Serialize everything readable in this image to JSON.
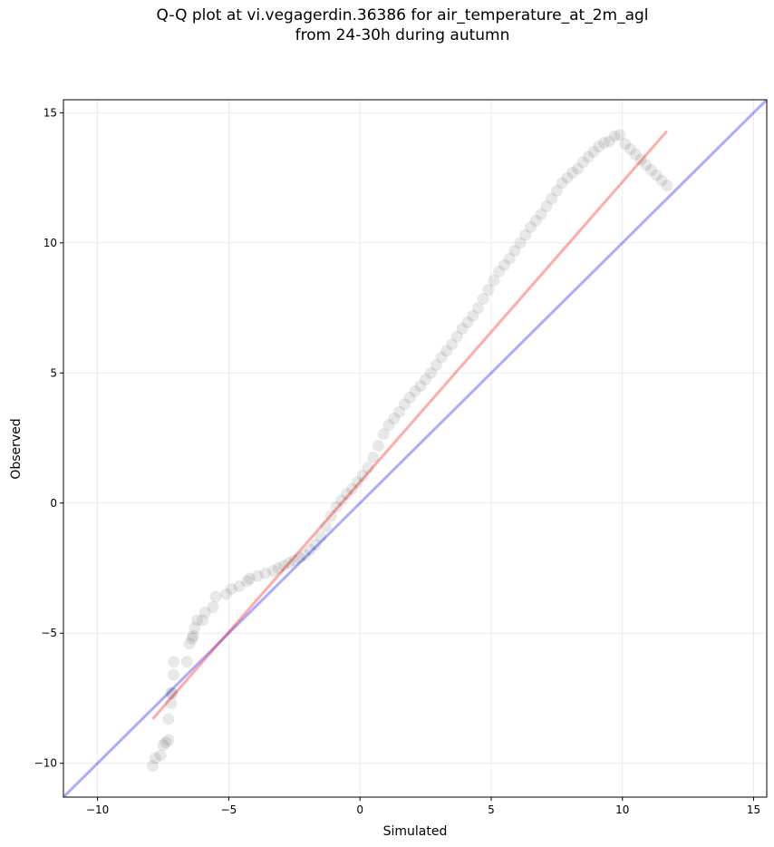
{
  "chart_data": {
    "type": "scatter",
    "title_line1": "Q-Q plot at vi.vegagerdin.36386 for air_temperature_at_2m_agl",
    "title_line2": "from 24-30h during autumn",
    "xlabel": "Simulated",
    "ylabel": "Observed",
    "xlim": [
      -11.3,
      15.5
    ],
    "ylim": [
      -11.3,
      15.5
    ],
    "xticks": [
      -10,
      -5,
      0,
      5,
      10,
      15
    ],
    "yticks": [
      -10,
      -5,
      0,
      5,
      10,
      15
    ],
    "xtick_labels": [
      "−10",
      "−5",
      "0",
      "5",
      "10",
      "15"
    ],
    "ytick_labels": [
      "−10",
      "−5",
      "0",
      "5",
      "10",
      "15"
    ],
    "grid": true,
    "reference_line": {
      "name": "1:1 line",
      "color": "#0000ff",
      "x": [
        -11.3,
        15.5
      ],
      "y": [
        -11.3,
        15.5
      ]
    },
    "fit_line": {
      "name": "fit",
      "color": "#ff0000",
      "x": [
        -7.9,
        11.7
      ],
      "y": [
        -8.3,
        14.3
      ]
    },
    "point_color": "#000000",
    "series": [
      {
        "x": [
          -7.9,
          -7.8,
          -7.6,
          -7.5,
          -7.4,
          -7.3,
          -7.3,
          -7.2,
          -7.2,
          -7.15,
          -7.1,
          -7.1,
          -6.6,
          -6.5,
          -6.4,
          -6.35,
          -6.3,
          -6.2,
          -6.0,
          -5.9,
          -5.6,
          -5.5,
          -5.1,
          -4.9,
          -4.6,
          -4.3,
          -4.2,
          -3.9,
          -3.6,
          -3.3,
          -3.1,
          -2.9,
          -2.7,
          -2.5,
          -2.3,
          -2.1,
          -1.9,
          -1.7,
          -1.5,
          -1.3,
          -1.1,
          -0.9,
          -0.7,
          -0.5,
          -0.3,
          -0.1,
          0.1,
          0.3,
          0.5,
          0.7,
          0.9,
          1.1,
          1.3,
          1.5,
          1.7,
          1.9,
          2.1,
          2.3,
          2.5,
          2.7,
          2.9,
          3.1,
          3.3,
          3.5,
          3.7,
          3.9,
          4.1,
          4.3,
          4.5,
          4.7,
          4.9,
          5.1,
          5.3,
          5.5,
          5.7,
          5.9,
          6.1,
          6.3,
          6.5,
          6.7,
          6.9,
          7.1,
          7.3,
          7.5,
          7.7,
          7.9,
          8.1,
          8.3,
          8.5,
          8.7,
          8.9,
          9.1,
          9.3,
          9.5,
          9.7,
          9.9,
          10.1,
          10.3,
          10.5,
          10.7,
          10.9,
          11.1,
          11.3,
          11.5,
          11.7
        ],
        "y": [
          -10.1,
          -9.8,
          -9.7,
          -9.3,
          -9.2,
          -9.1,
          -8.3,
          -7.7,
          -7.3,
          -7.3,
          -6.6,
          -6.1,
          -6.1,
          -5.4,
          -5.2,
          -5.1,
          -4.8,
          -4.5,
          -4.5,
          -4.2,
          -4.0,
          -3.6,
          -3.5,
          -3.3,
          -3.2,
          -3.0,
          -2.9,
          -2.8,
          -2.7,
          -2.6,
          -2.5,
          -2.4,
          -2.3,
          -2.2,
          -2.1,
          -2.0,
          -1.8,
          -1.6,
          -1.3,
          -0.9,
          -0.5,
          -0.15,
          0.1,
          0.35,
          0.55,
          0.8,
          1.05,
          1.35,
          1.75,
          2.2,
          2.65,
          3.0,
          3.25,
          3.5,
          3.8,
          4.05,
          4.3,
          4.5,
          4.75,
          5.0,
          5.3,
          5.6,
          5.85,
          6.1,
          6.4,
          6.7,
          6.95,
          7.2,
          7.5,
          7.85,
          8.2,
          8.55,
          8.9,
          9.15,
          9.4,
          9.7,
          10.0,
          10.3,
          10.6,
          10.85,
          11.1,
          11.4,
          11.7,
          12.0,
          12.3,
          12.5,
          12.7,
          12.85,
          13.1,
          13.3,
          13.5,
          13.7,
          13.85,
          13.9,
          14.1,
          14.15,
          13.8,
          13.6,
          13.4,
          13.2,
          13.0,
          12.8,
          12.6,
          12.4,
          12.2
        ]
      }
    ]
  }
}
